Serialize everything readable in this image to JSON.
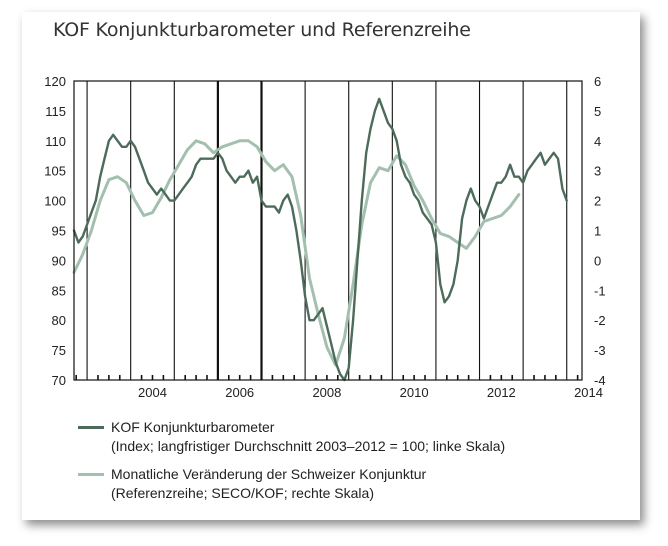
{
  "chart_data": {
    "type": "line",
    "title": "KOF Konjunkturbarometer und Referenzreihe",
    "x_range": [
      2002.7,
      2014.35
    ],
    "x_ticks": [
      "2004",
      "2006",
      "2008",
      "2010",
      "2012",
      "2014"
    ],
    "y_left": {
      "range": [
        70,
        120
      ],
      "ticks": [
        "120",
        "115",
        "110",
        "105",
        "100",
        "95",
        "90",
        "85",
        "80",
        "75",
        "70"
      ]
    },
    "y_right": {
      "range": [
        -4,
        6
      ],
      "ticks": [
        "6",
        "5",
        "4",
        "3",
        "2",
        "1",
        "0",
        "-1",
        "-2",
        "-3",
        "-4"
      ]
    },
    "grid": "vertical lines at year boundaries",
    "legend_position": "bottom",
    "series": [
      {
        "name": "KOF Konjunkturbarometer",
        "subtitle": "(Index; langfristiger Durchschnitt 2003–2012 = 100; linke Skala)",
        "axis": "left",
        "color": "#4d6b5a",
        "x": [
          2002.7,
          2002.8,
          2002.9,
          2003.0,
          2003.1,
          2003.2,
          2003.3,
          2003.4,
          2003.5,
          2003.6,
          2003.7,
          2003.8,
          2003.9,
          2004.0,
          2004.1,
          2004.2,
          2004.3,
          2004.4,
          2004.5,
          2004.6,
          2004.7,
          2004.8,
          2004.9,
          2005.0,
          2005.1,
          2005.2,
          2005.3,
          2005.4,
          2005.5,
          2005.6,
          2005.7,
          2005.8,
          2005.9,
          2006.0,
          2006.1,
          2006.2,
          2006.3,
          2006.4,
          2006.5,
          2006.6,
          2006.7,
          2006.8,
          2006.9,
          2007.0,
          2007.1,
          2007.2,
          2007.3,
          2007.4,
          2007.5,
          2007.6,
          2007.7,
          2007.8,
          2007.9,
          2008.0,
          2008.1,
          2008.2,
          2008.3,
          2008.4,
          2008.5,
          2008.6,
          2008.7,
          2008.8,
          2008.9,
          2009.0,
          2009.1,
          2009.2,
          2009.3,
          2009.4,
          2009.5,
          2009.6,
          2009.7,
          2009.8,
          2009.9,
          2010.0,
          2010.1,
          2010.2,
          2010.3,
          2010.4,
          2010.5,
          2010.6,
          2010.7,
          2010.8,
          2010.9,
          2011.0,
          2011.1,
          2011.2,
          2011.3,
          2011.4,
          2011.5,
          2011.6,
          2011.7,
          2011.8,
          2011.9,
          2012.0,
          2012.1,
          2012.2,
          2012.3,
          2012.4,
          2012.5,
          2012.6,
          2012.7,
          2012.8,
          2012.9,
          2013.0,
          2013.1,
          2013.2,
          2013.3,
          2013.4,
          2013.5,
          2013.6,
          2013.7,
          2013.8,
          2013.9,
          2014.0
        ],
        "values": [
          95,
          93,
          94,
          96,
          98,
          100,
          104,
          107,
          110,
          111,
          110,
          109,
          109,
          110,
          109,
          107,
          105,
          103,
          102,
          101,
          102,
          101,
          100,
          100,
          101,
          102,
          103,
          104,
          106,
          107,
          107,
          107,
          107,
          108,
          107,
          105,
          104,
          103,
          104,
          104,
          105,
          103,
          104,
          100,
          99,
          99,
          99,
          98,
          100,
          101,
          99,
          95,
          90,
          84,
          80,
          80,
          81,
          82,
          79,
          76,
          73,
          71,
          70,
          72,
          80,
          90,
          100,
          108,
          112,
          115,
          117,
          115,
          113,
          112,
          110,
          106,
          104,
          103,
          101,
          100,
          98,
          97,
          96,
          93,
          86,
          83,
          84,
          86,
          90,
          97,
          100,
          102,
          100,
          99,
          97,
          99,
          101,
          103,
          103,
          104,
          106,
          104,
          104,
          103,
          105,
          106,
          107,
          108,
          106,
          107,
          108,
          107,
          102,
          100
        ]
      },
      {
        "name": "Monatliche Veränderung der Schweizer Konjunktur",
        "subtitle": "(Referenzreihe; SECO/KOF; rechte Skala)",
        "axis": "right",
        "color": "#a3bfae",
        "x": [
          2002.7,
          2002.9,
          2003.1,
          2003.3,
          2003.5,
          2003.7,
          2003.9,
          2004.1,
          2004.3,
          2004.5,
          2004.7,
          2004.9,
          2005.1,
          2005.3,
          2005.5,
          2005.7,
          2005.9,
          2006.1,
          2006.3,
          2006.5,
          2006.7,
          2006.9,
          2007.1,
          2007.3,
          2007.5,
          2007.7,
          2007.9,
          2008.1,
          2008.3,
          2008.5,
          2008.7,
          2008.9,
          2009.1,
          2009.3,
          2009.5,
          2009.7,
          2009.9,
          2010.1,
          2010.3,
          2010.5,
          2010.7,
          2010.9,
          2011.1,
          2011.3,
          2011.5,
          2011.7,
          2011.9,
          2012.1,
          2012.3,
          2012.5,
          2012.7,
          2012.9
        ],
        "values": [
          -0.4,
          0.2,
          1.0,
          2.0,
          2.7,
          2.8,
          2.6,
          2.0,
          1.5,
          1.6,
          2.1,
          2.7,
          3.2,
          3.7,
          4.0,
          3.9,
          3.6,
          3.8,
          3.9,
          4.0,
          4.0,
          3.8,
          3.3,
          3.0,
          3.2,
          2.8,
          1.5,
          -0.6,
          -1.8,
          -2.9,
          -3.5,
          -2.6,
          -0.8,
          1.2,
          2.6,
          3.1,
          3.0,
          3.5,
          3.2,
          2.5,
          2.0,
          1.4,
          0.9,
          0.8,
          0.6,
          0.4,
          0.8,
          1.3,
          1.4,
          1.5,
          1.8,
          2.2
        ]
      }
    ]
  }
}
